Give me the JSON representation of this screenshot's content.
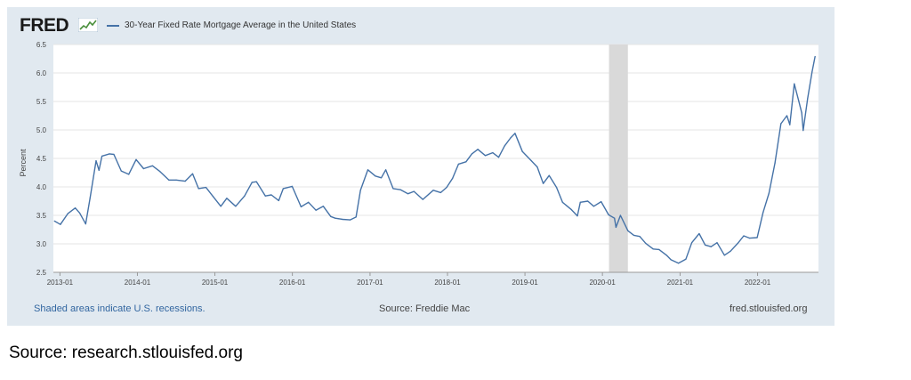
{
  "header": {
    "brand": "FRED",
    "legend_label": "30-Year Fixed Rate Mortgage Average in the United States",
    "brand_icon": "fred-chart-icon"
  },
  "footer": {
    "recessions_note": "Shaded areas indicate U.S. recessions.",
    "source": "Source: Freddie Mac",
    "site": "fred.stlouisfed.org"
  },
  "caption": "Source: research.stlouisfed.org",
  "colors": {
    "line": "#4572a7",
    "panel": "#e1e9f0",
    "recession": "#d9d9d9",
    "footer_link": "#3266a0"
  },
  "chart_data": {
    "type": "line",
    "title": "",
    "ylabel": "Percent",
    "xlabel": "",
    "ylim": [
      2.5,
      6.5
    ],
    "xlim": [
      "2012-12-01",
      "2022-10-15"
    ],
    "yticks": [
      "2.5",
      "3.0",
      "3.5",
      "4.0",
      "4.5",
      "5.0",
      "5.5",
      "6.0",
      "6.5"
    ],
    "xticks": [
      "2013-01",
      "2014-01",
      "2015-01",
      "2016-01",
      "2017-01",
      "2018-01",
      "2019-01",
      "2020-01",
      "2021-01",
      "2022-01"
    ],
    "grid": true,
    "recessions": [
      {
        "start": "2020-02-01",
        "end": "2020-04-30"
      }
    ],
    "series": [
      {
        "name": "30-Year Fixed Rate Mortgage Average in the United States",
        "points": [
          [
            "2012-12-06",
            3.4
          ],
          [
            "2013-01-03",
            3.34
          ],
          [
            "2013-02-07",
            3.53
          ],
          [
            "2013-03-14",
            3.63
          ],
          [
            "2013-04-04",
            3.54
          ],
          [
            "2013-05-02",
            3.35
          ],
          [
            "2013-05-23",
            3.81
          ],
          [
            "2013-06-20",
            4.46
          ],
          [
            "2013-07-04",
            4.29
          ],
          [
            "2013-07-18",
            4.54
          ],
          [
            "2013-08-22",
            4.58
          ],
          [
            "2013-09-12",
            4.57
          ],
          [
            "2013-10-17",
            4.28
          ],
          [
            "2013-11-21",
            4.22
          ],
          [
            "2013-12-26",
            4.48
          ],
          [
            "2014-01-30",
            4.32
          ],
          [
            "2014-03-13",
            4.37
          ],
          [
            "2014-04-17",
            4.27
          ],
          [
            "2014-05-29",
            4.12
          ],
          [
            "2014-07-03",
            4.12
          ],
          [
            "2014-08-14",
            4.1
          ],
          [
            "2014-09-18",
            4.23
          ],
          [
            "2014-10-16",
            3.97
          ],
          [
            "2014-11-20",
            3.99
          ],
          [
            "2014-12-24",
            3.83
          ],
          [
            "2015-01-29",
            3.66
          ],
          [
            "2015-02-26",
            3.8
          ],
          [
            "2015-04-09",
            3.66
          ],
          [
            "2015-05-21",
            3.84
          ],
          [
            "2015-06-25",
            4.08
          ],
          [
            "2015-07-16",
            4.09
          ],
          [
            "2015-08-27",
            3.84
          ],
          [
            "2015-09-24",
            3.86
          ],
          [
            "2015-10-29",
            3.76
          ],
          [
            "2015-11-19",
            3.97
          ],
          [
            "2015-12-31",
            4.01
          ],
          [
            "2016-02-11",
            3.65
          ],
          [
            "2016-03-17",
            3.73
          ],
          [
            "2016-04-21",
            3.59
          ],
          [
            "2016-05-26",
            3.66
          ],
          [
            "2016-06-30",
            3.48
          ],
          [
            "2016-07-21",
            3.45
          ],
          [
            "2016-08-25",
            3.43
          ],
          [
            "2016-09-29",
            3.42
          ],
          [
            "2016-10-27",
            3.47
          ],
          [
            "2016-11-17",
            3.94
          ],
          [
            "2016-12-22",
            4.3
          ],
          [
            "2017-01-26",
            4.19
          ],
          [
            "2017-02-23",
            4.16
          ],
          [
            "2017-03-16",
            4.3
          ],
          [
            "2017-04-20",
            3.97
          ],
          [
            "2017-05-25",
            3.95
          ],
          [
            "2017-06-29",
            3.88
          ],
          [
            "2017-07-27",
            3.92
          ],
          [
            "2017-09-07",
            3.78
          ],
          [
            "2017-10-26",
            3.94
          ],
          [
            "2017-11-30",
            3.9
          ],
          [
            "2017-12-28",
            3.99
          ],
          [
            "2018-01-25",
            4.15
          ],
          [
            "2018-02-22",
            4.4
          ],
          [
            "2018-03-29",
            4.44
          ],
          [
            "2018-04-26",
            4.58
          ],
          [
            "2018-05-24",
            4.66
          ],
          [
            "2018-06-28",
            4.55
          ],
          [
            "2018-08-02",
            4.6
          ],
          [
            "2018-08-30",
            4.52
          ],
          [
            "2018-09-27",
            4.72
          ],
          [
            "2018-10-25",
            4.86
          ],
          [
            "2018-11-15",
            4.94
          ],
          [
            "2018-12-20",
            4.62
          ],
          [
            "2019-01-31",
            4.46
          ],
          [
            "2019-02-28",
            4.35
          ],
          [
            "2019-03-28",
            4.06
          ],
          [
            "2019-04-25",
            4.2
          ],
          [
            "2019-05-30",
            3.99
          ],
          [
            "2019-06-27",
            3.73
          ],
          [
            "2019-08-08",
            3.6
          ],
          [
            "2019-09-05",
            3.49
          ],
          [
            "2019-09-19",
            3.73
          ],
          [
            "2019-10-24",
            3.75
          ],
          [
            "2019-11-21",
            3.66
          ],
          [
            "2019-12-26",
            3.74
          ],
          [
            "2020-01-30",
            3.51
          ],
          [
            "2020-02-27",
            3.45
          ],
          [
            "2020-03-05",
            3.29
          ],
          [
            "2020-03-26",
            3.5
          ],
          [
            "2020-04-30",
            3.23
          ],
          [
            "2020-05-28",
            3.15
          ],
          [
            "2020-06-25",
            3.13
          ],
          [
            "2020-07-23",
            3.01
          ],
          [
            "2020-08-27",
            2.91
          ],
          [
            "2020-09-24",
            2.9
          ],
          [
            "2020-10-29",
            2.8
          ],
          [
            "2020-11-19",
            2.72
          ],
          [
            "2020-12-24",
            2.66
          ],
          [
            "2021-01-28",
            2.73
          ],
          [
            "2021-02-25",
            3.02
          ],
          [
            "2021-04-01",
            3.18
          ],
          [
            "2021-04-29",
            2.98
          ],
          [
            "2021-05-27",
            2.95
          ],
          [
            "2021-06-24",
            3.02
          ],
          [
            "2021-07-29",
            2.8
          ],
          [
            "2021-08-26",
            2.87
          ],
          [
            "2021-09-30",
            3.01
          ],
          [
            "2021-10-28",
            3.14
          ],
          [
            "2021-11-25",
            3.1
          ],
          [
            "2021-12-30",
            3.11
          ],
          [
            "2022-01-27",
            3.55
          ],
          [
            "2022-02-24",
            3.89
          ],
          [
            "2022-03-24",
            4.42
          ],
          [
            "2022-04-21",
            5.11
          ],
          [
            "2022-05-19",
            5.25
          ],
          [
            "2022-06-02",
            5.09
          ],
          [
            "2022-06-23",
            5.81
          ],
          [
            "2022-07-14",
            5.51
          ],
          [
            "2022-07-28",
            5.3
          ],
          [
            "2022-08-04",
            4.99
          ],
          [
            "2022-08-25",
            5.55
          ],
          [
            "2022-09-15",
            6.02
          ],
          [
            "2022-09-29",
            6.29
          ]
        ]
      }
    ]
  }
}
